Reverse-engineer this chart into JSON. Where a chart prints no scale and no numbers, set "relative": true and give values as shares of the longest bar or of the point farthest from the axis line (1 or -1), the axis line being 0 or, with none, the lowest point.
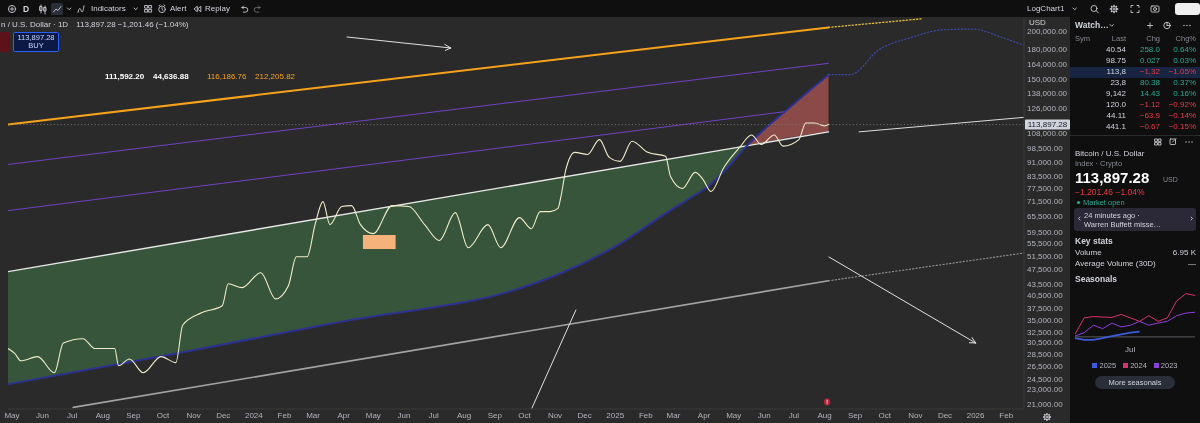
{
  "chart_data": [
    {
      "type": "line",
      "title": "n / U.S. Dollar · 1D",
      "log": true,
      "xlim": [
        "2023-04-27",
        "2026-02-19"
      ],
      "xticks": [
        {
          "value": "2023-05-01",
          "label": "May"
        },
        {
          "value": "2023-06-01",
          "label": "Jun"
        },
        {
          "value": "2023-07-01",
          "label": "Jul"
        },
        {
          "value": "2023-08-01",
          "label": "Aug"
        },
        {
          "value": "2023-09-01",
          "label": "Sep"
        },
        {
          "value": "2023-10-01",
          "label": "Oct"
        },
        {
          "value": "2023-11-01",
          "label": "Nov"
        },
        {
          "value": "2023-12-01",
          "label": "Dec"
        },
        {
          "value": "2024-01-01",
          "label": "2024"
        },
        {
          "value": "2024-02-01",
          "label": "Feb"
        },
        {
          "value": "2024-03-01",
          "label": "Mar"
        },
        {
          "value": "2024-04-01",
          "label": "Apr"
        },
        {
          "value": "2024-05-01",
          "label": "May"
        },
        {
          "value": "2024-06-01",
          "label": "Jun"
        },
        {
          "value": "2024-07-01",
          "label": "Jul"
        },
        {
          "value": "2024-08-01",
          "label": "Aug"
        },
        {
          "value": "2024-09-01",
          "label": "Sep"
        },
        {
          "value": "2024-10-01",
          "label": "Oct"
        },
        {
          "value": "2024-11-01",
          "label": "Nov"
        },
        {
          "value": "2024-12-01",
          "label": "Dec"
        },
        {
          "value": "2025-01-01",
          "label": "2025"
        },
        {
          "value": "2025-02-01",
          "label": "Feb"
        },
        {
          "value": "2025-03-01",
          "label": "Mar"
        },
        {
          "value": "2025-04-01",
          "label": "Apr"
        },
        {
          "value": "2025-05-01",
          "label": "May"
        },
        {
          "value": "2025-06-01",
          "label": "Jun"
        },
        {
          "value": "2025-07-01",
          "label": "Jul"
        },
        {
          "value": "2025-08-01",
          "label": "Aug"
        },
        {
          "value": "2025-09-01",
          "label": "Sep"
        },
        {
          "value": "2025-10-01",
          "label": "Oct"
        },
        {
          "value": "2025-11-01",
          "label": "Nov"
        },
        {
          "value": "2025-12-01",
          "label": "Dec"
        },
        {
          "value": "2026-01-01",
          "label": "2026"
        },
        {
          "value": "2026-02-01",
          "label": "Feb"
        }
      ],
      "ylim": [
        20400,
        217000
      ],
      "yticks": [
        {
          "value": 200000,
          "label": "200,000.00"
        },
        {
          "value": 180000,
          "label": "180,000.00"
        },
        {
          "value": 164000,
          "label": "164,000.00"
        },
        {
          "value": 150000,
          "label": "150,000.00"
        },
        {
          "value": 138000,
          "label": "138,000.00"
        },
        {
          "value": 126000,
          "label": "126,000.00"
        },
        {
          "value": 108000,
          "label": "108,000.00"
        },
        {
          "value": 98500,
          "label": "98,500.00"
        },
        {
          "value": 91000,
          "label": "91,000.00"
        },
        {
          "value": 83500,
          "label": "83,500.00"
        },
        {
          "value": 77500,
          "label": "77,500.00"
        },
        {
          "value": 71500,
          "label": "71,500.00"
        },
        {
          "value": 65500,
          "label": "65,500.00"
        },
        {
          "value": 59500,
          "label": "59,500.00"
        },
        {
          "value": 55500,
          "label": "55,500.00"
        },
        {
          "value": 51500,
          "label": "51,500.00"
        },
        {
          "value": 47500,
          "label": "47,500.00"
        },
        {
          "value": 43500,
          "label": "43,500.00"
        },
        {
          "value": 40500,
          "label": "40,500.00"
        },
        {
          "value": 37500,
          "label": "37,500.00"
        },
        {
          "value": 35000,
          "label": "35,000.00"
        },
        {
          "value": 32500,
          "label": "32,500.00"
        },
        {
          "value": 30500,
          "label": "30,500.00"
        },
        {
          "value": 28500,
          "label": "28,500.00"
        },
        {
          "value": 26500,
          "label": "26,500.00"
        },
        {
          "value": 24500,
          "label": "24,500.00"
        },
        {
          "value": 23000,
          "label": "23,000.00"
        },
        {
          "value": 21000,
          "label": "21,000.00"
        }
      ],
      "series": [
        {
          "color": "#36553a",
          "x": [
            "2023-04-27",
            "2023-10-13",
            "2024-03-30",
            "2024-10-08",
            "2024-11-08",
            "2025-01-11",
            "2025-02-13",
            "2025-03-17",
            "2025-04-05",
            "2025-04-23",
            "2025-05-14"
          ],
          "values": [
            null,
            null,
            null,
            null,
            null,
            null,
            null,
            null,
            null,
            null,
            null
          ],
          "lower": [
            23700,
            28500,
            34600,
            43300,
            46500,
            56500,
            64500,
            72800,
            78300,
            86800,
            100000
          ],
          "upper": [
            46800,
            55600,
            66100,
            80400,
            83000,
            88600,
            91500,
            94600,
            96400,
            98300,
            100000
          ]
        },
        {
          "color": "#8a4a47",
          "x": [
            "2025-05-14",
            "2025-06-23",
            "2025-08-05"
          ],
          "values": [
            null,
            null,
            null
          ],
          "lower": [
            100000,
            105000,
            109000
          ],
          "upper": [
            100000,
            124000,
            154000
          ]
        },
        {
          "color": "#e8e8e8",
          "x": [
            "2023-04-27",
            "2025-08-05"
          ],
          "values": [
            46800,
            109000
          ]
        },
        {
          "color": "#dcdcdc",
          "x": [
            "2025-09-05",
            "2026-02-19"
          ],
          "values": [
            109000,
            119000
          ]
        },
        {
          "color": "#2d3192",
          "x": [
            "2023-04-27",
            "2023-10-13",
            "2024-03-30",
            "2024-10-08",
            "2024-11-08",
            "2025-01-11",
            "2025-02-13",
            "2025-03-17",
            "2025-04-05",
            "2025-04-23",
            "2025-05-14",
            "2025-06-23",
            "2025-08-05"
          ],
          "values": [
            23700,
            28500,
            34600,
            43300,
            46500,
            56500,
            64500,
            72800,
            78300,
            86800,
            100000,
            124000,
            154000
          ]
        },
        {
          "color": "#3d4aa8",
          "line_style": "dotted",
          "x": [
            "2025-08-05",
            "2025-08-27",
            "2025-09-25",
            "2025-10-28",
            "2025-11-28",
            "2025-12-29",
            "2026-01-30",
            "2026-02-19"
          ],
          "values": [
            154000,
            154000,
            179000,
            193000,
            202000,
            203000,
            192000,
            184000
          ]
        },
        {
          "color": "#f7a21b",
          "x": [
            "2023-04-27",
            "2025-08-05"
          ],
          "values": [
            114000,
            205000
          ]
        },
        {
          "color": "#d9b436",
          "line_style": "dotted",
          "x": [
            "2025-08-05",
            "2025-11-08"
          ],
          "values": [
            205000,
            216000
          ]
        },
        {
          "color": "#6f42c1",
          "x": [
            "2023-04-27",
            "2025-08-05"
          ],
          "values": [
            89500,
            165000
          ]
        },
        {
          "color": "#6f42c1",
          "x": [
            "2023-04-27",
            "2025-06-20"
          ],
          "values": [
            67700,
            123000
          ]
        },
        {
          "color": "#a3a3a3",
          "x": [
            "2023-07-02",
            "2025-08-05"
          ],
          "values": [
            20600,
            44300
          ]
        },
        {
          "color": "#8c8c8c",
          "line_style": "dotted",
          "x": [
            "2025-08-05",
            "2026-02-19"
          ],
          "values": [
            44300,
            52400
          ]
        },
        {
          "color": "#f2edcb",
          "x": [
            "2023-04-27",
            "2023-05-04",
            "2023-05-10",
            "2023-05-27",
            "2023-06-13",
            "2023-06-22",
            "2023-07-12",
            "2023-07-24",
            "2023-08-13",
            "2023-08-17",
            "2023-08-28",
            "2023-09-11",
            "2023-09-29",
            "2023-10-14",
            "2023-10-21",
            "2023-11-09",
            "2023-11-30",
            "2023-12-06",
            "2023-12-20",
            "2024-01-08",
            "2024-01-23",
            "2024-02-05",
            "2024-02-13",
            "2024-02-24",
            "2024-03-03",
            "2024-03-11",
            "2024-03-18",
            "2024-03-30",
            "2024-04-09",
            "2024-04-18",
            "2024-05-01",
            "2024-05-20",
            "2024-06-06",
            "2024-06-22",
            "2024-07-07",
            "2024-07-23",
            "2024-08-05",
            "2024-08-25",
            "2024-09-07",
            "2024-09-26",
            "2024-10-08",
            "2024-10-17",
            "2024-10-27",
            "2024-11-04",
            "2024-11-07",
            "2024-11-12",
            "2024-11-21",
            "2024-12-04",
            "2024-12-16",
            "2024-12-26",
            "2025-01-06",
            "2025-01-18",
            "2025-02-03",
            "2025-02-21",
            "2025-02-26",
            "2025-03-10",
            "2025-03-23",
            "2025-03-31",
            "2025-04-08",
            "2025-04-21",
            "2025-05-07",
            "2025-05-19",
            "2025-05-29",
            "2025-06-11",
            "2025-06-20",
            "2025-07-06",
            "2025-07-13",
            "2025-07-22",
            "2025-08-01",
            "2025-08-05"
          ],
          "values": [
            29400,
            28500,
            27300,
            28000,
            25400,
            30400,
            31200,
            29400,
            29400,
            26500,
            27600,
            25400,
            28000,
            27000,
            33900,
            36500,
            38100,
            43500,
            42500,
            46500,
            39700,
            43000,
            51200,
            51200,
            62200,
            71500,
            62200,
            69400,
            69800,
            62200,
            58900,
            69800,
            69400,
            62200,
            56500,
            66900,
            54100,
            62200,
            54100,
            64900,
            60700,
            67300,
            67300,
            68600,
            73700,
            86800,
            96300,
            95100,
            104000,
            93400,
            91200,
            103000,
            96300,
            94000,
            83200,
            77400,
            85300,
            81700,
            76000,
            87900,
            99200,
            107000,
            101000,
            107000,
            100000,
            104000,
            115000,
            115000,
            113000,
            113897.28
          ]
        }
      ],
      "ref_lines": [
        {
          "axis": "y",
          "value": 113897.28,
          "label": "113,897.28",
          "line_style": "dotted",
          "color": "#7c7c7c"
        }
      ],
      "annotations": [
        "D",
        "Indicators",
        "Alert",
        "Replay",
        "LogChart1",
        "113,897.28 −1,201.46 (−1.04%)",
        "113,897.28",
        "BUY",
        "111,592.20",
        "44,636.88",
        "116,186.76",
        "212,205.82",
        "USD"
      ]
    },
    {
      "type": "other",
      "annotations": [
        "Watch…",
        "Sym",
        "Last",
        "Chg",
        "Chg%",
        "40.54",
        "258.0",
        "0.64%",
        "98.75",
        "0.027",
        "0.03%",
        "113,8",
        "−1,32",
        "−1.05%",
        "23,8",
        "80.38",
        "0.37%",
        "9,142",
        "14.43",
        "0.16%",
        "120.0",
        "−1.12",
        "−0.92%",
        "44.11",
        "−63.9",
        "−0.14%",
        "441.1",
        "−0.67",
        "−0.15%",
        "Bitcoin / U.S. Dollar",
        "Index · Crypto",
        "113,897.28",
        "USD",
        "−1,201.46 −1.04%",
        "Market open",
        "24 minutes ago ·",
        "Warren Buffett misse…",
        "Key stats",
        "Volume",
        "6.95 K",
        "Average Volume (30D)",
        "—"
      ]
    },
    {
      "type": "line",
      "title": "Seasonals",
      "relative": true,
      "legend": "bottom",
      "categories": [
        null,
        null,
        null,
        null,
        null,
        null,
        null,
        null,
        null,
        null,
        null,
        null,
        null,
        null
      ],
      "series": [
        {
          "name": "2025",
          "color": "#3b5bdb",
          "values": [
            -0.03,
            -0.07,
            -0.07,
            -0.03,
            0.02,
            0.06,
            0.1,
            0.12,
            null,
            null,
            null,
            null,
            null,
            null
          ]
        },
        {
          "name": "2024",
          "color": "#d6336c",
          "values": [
            0.06,
            0.44,
            0.47,
            0.46,
            0.45,
            0.52,
            0.44,
            0.36,
            0.49,
            0.36,
            0.44,
            0.83,
            1,
            0.96
          ]
        },
        {
          "name": "2023",
          "color": "#8c3fd9",
          "values": [
            0.02,
            0.1,
            0.27,
            0.19,
            0.32,
            0.23,
            0.27,
            0.36,
            0.27,
            0.32,
            0.36,
            0.49,
            0.55,
            0.57
          ]
        }
      ],
      "annotations": [
        "Jul",
        "More seasonals"
      ]
    }
  ]
}
